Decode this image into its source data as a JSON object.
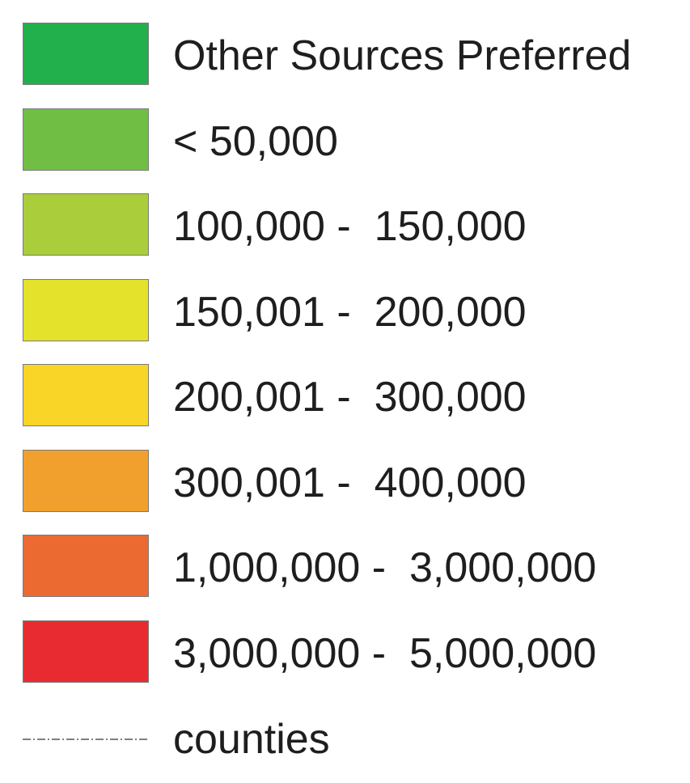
{
  "legend": {
    "items": [
      {
        "label": "Other Sources Preferred",
        "color": "#21b04b"
      },
      {
        "label": "< 50,000",
        "color": "#70bf44"
      },
      {
        "label": "100,000 -  150,000",
        "color": "#a9cd3b"
      },
      {
        "label": "150,001 -  200,000",
        "color": "#e5e22c"
      },
      {
        "label": "200,001 -  300,000",
        "color": "#f8d526"
      },
      {
        "label": "300,001 -  400,000",
        "color": "#f2a02d"
      },
      {
        "label": "1,000,000 -  3,000,000",
        "color": "#eb6a32"
      },
      {
        "label": "3,000,000 -  5,000,000",
        "color": "#e82b31"
      }
    ],
    "boundary": {
      "label": "counties",
      "line_color": "#555555"
    }
  }
}
